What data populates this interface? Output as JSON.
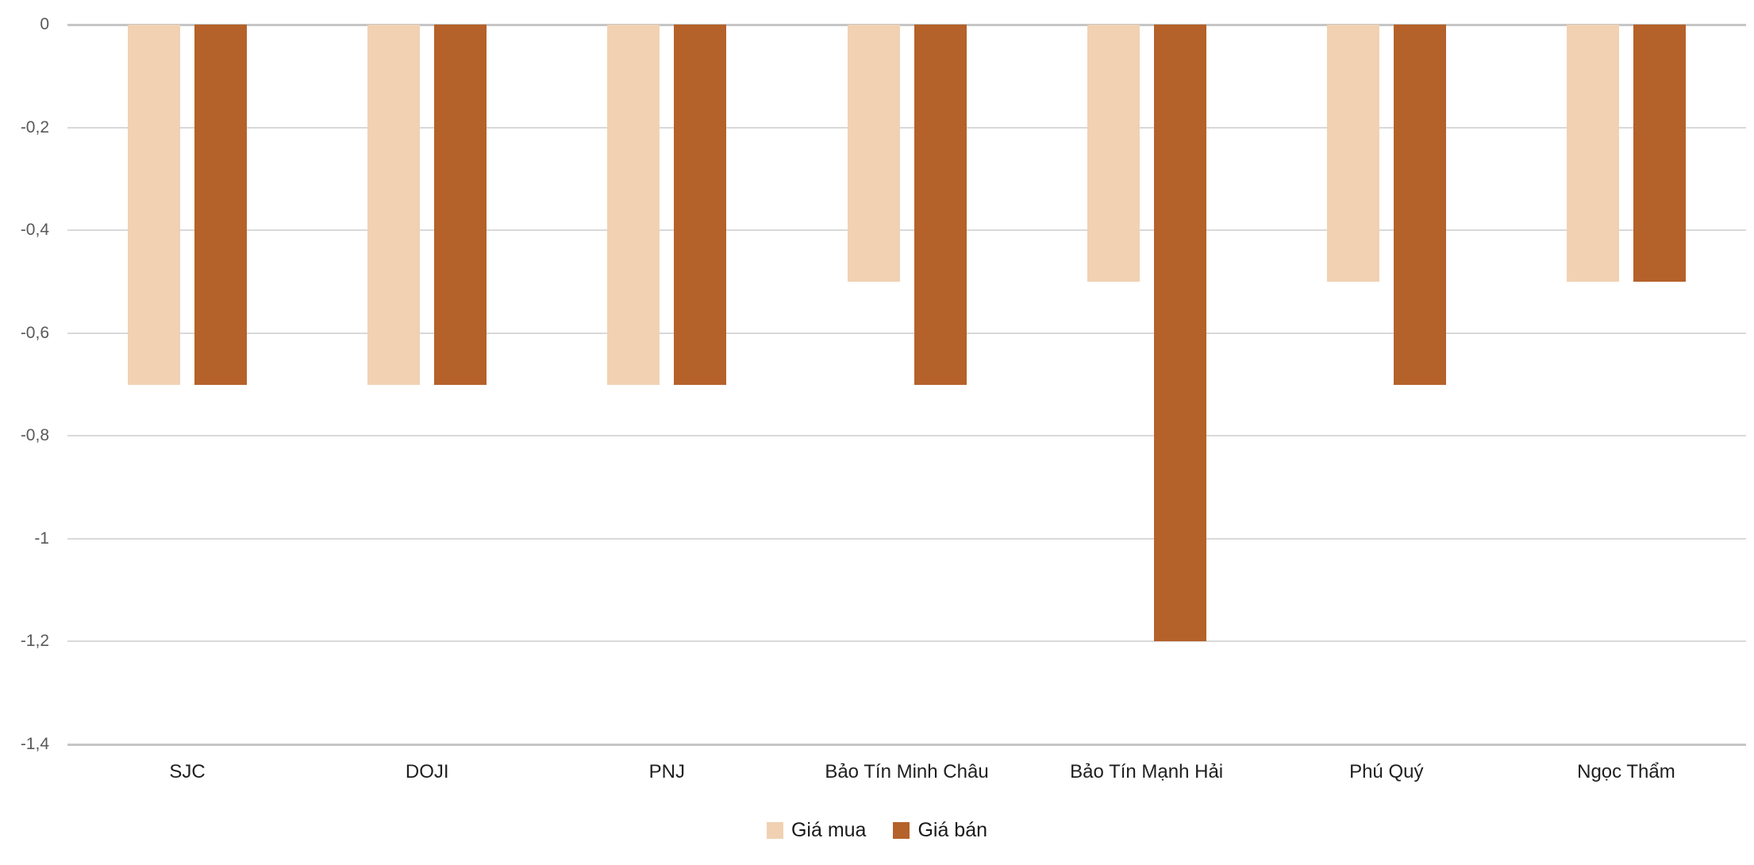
{
  "chart_data": {
    "type": "bar",
    "orientation": "vertical",
    "title": "",
    "xlabel": "",
    "ylabel": "",
    "categories": [
      "SJC",
      "DOJI",
      "PNJ",
      "Bảo Tín Minh Châu",
      "Bảo Tín Mạnh Hải",
      "Phú Quý",
      "Ngọc Thẩm"
    ],
    "series": [
      {
        "name": "Giá mua",
        "color": "#F1D1B2",
        "values": [
          -0.7,
          -0.7,
          -0.7,
          -0.5,
          -0.5,
          -0.5,
          -0.5
        ]
      },
      {
        "name": "Giá bán",
        "color": "#B5612A",
        "values": [
          -0.7,
          -0.7,
          -0.7,
          -0.7,
          -1.2,
          -0.7,
          -0.5
        ]
      }
    ],
    "y_axis": {
      "min": -1.4,
      "max": 0,
      "step": 0.2,
      "tick_labels": [
        "0",
        "-0,2",
        "-0,4",
        "-0,6",
        "-0,8",
        "-1",
        "-1,2",
        "-1,4"
      ],
      "decimal_separator": ",",
      "tick_color": "#595959"
    },
    "grid": true,
    "gridline_color": "#D9D9D9",
    "axis_line_color": "#C6C6C6",
    "legend_position": "bottom-center",
    "background_color": "#FFFFFF"
  }
}
